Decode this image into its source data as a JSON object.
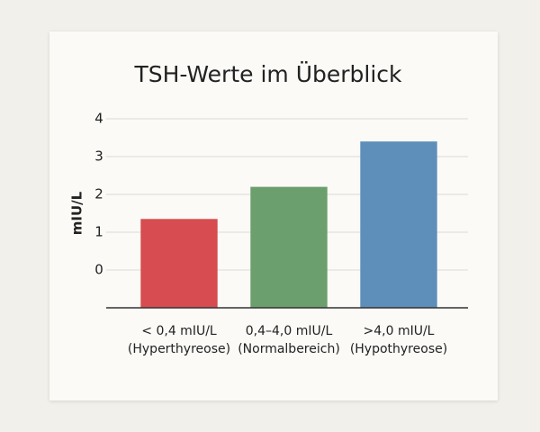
{
  "chart_data": {
    "type": "bar",
    "title": "TSH-Werte im Überblick",
    "y_label": "mIU/L",
    "categories": [
      [
        "< 0,4 mIU/L",
        "(Hyperthyreose)"
      ],
      [
        "0,4–4,0 mIU/L",
        "(Normalbereich)"
      ],
      [
        ">4,0 mIU/L",
        "(Hypothyreose)"
      ]
    ],
    "values": [
      1.35,
      2.2,
      3.4
    ],
    "colors": [
      "#d64c50",
      "#6b9f6d",
      "#5d8fba"
    ],
    "ylim": [
      -1,
      4
    ],
    "yticks": [
      0,
      1,
      2,
      3,
      4
    ],
    "grid": true
  }
}
